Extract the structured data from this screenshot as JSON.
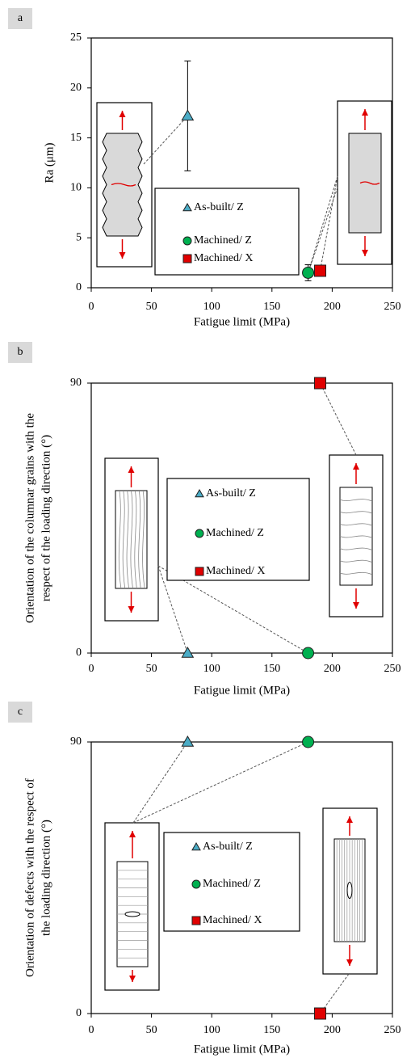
{
  "chart_data": [
    {
      "label": "a",
      "type": "scatter",
      "xlabel": "Fatigue limit (MPa)",
      "ylabel": "Ra (μm)",
      "xlim": [
        0,
        250
      ],
      "xticks": [
        0,
        50,
        100,
        150,
        200,
        250
      ],
      "ylim": [
        0,
        25
      ],
      "yticks": [
        0,
        5,
        10,
        15,
        20,
        25
      ],
      "series": [
        {
          "name": "As-built/ Z",
          "color": "#4bacc6",
          "marker": "triangle",
          "x": [
            80
          ],
          "values": [
            17.2
          ],
          "errors": [
            5.5
          ]
        },
        {
          "name": "Machined/ Z",
          "color": "#00b050",
          "marker": "circle",
          "x": [
            180
          ],
          "values": [
            1.5
          ],
          "errors": [
            0.8
          ]
        },
        {
          "name": "Machined/ X",
          "color": "#e00000",
          "marker": "square",
          "x": [
            190
          ],
          "values": [
            1.7
          ]
        }
      ]
    },
    {
      "label": "b",
      "type": "scatter",
      "xlabel": "Fatigue limit (MPa)",
      "ylabel": [
        "Orientation of the columnar grains with the",
        "respect of the loading direction (°)"
      ],
      "xlim": [
        0,
        250
      ],
      "xticks": [
        0,
        50,
        100,
        150,
        200,
        250
      ],
      "ylim": [
        0,
        90
      ],
      "yticks": [
        0,
        90
      ],
      "series": [
        {
          "name": "As-built/ Z",
          "color": "#4bacc6",
          "marker": "triangle",
          "x": [
            80
          ],
          "values": [
            0
          ]
        },
        {
          "name": "Machined/ Z",
          "color": "#00b050",
          "marker": "circle",
          "x": [
            180
          ],
          "values": [
            0
          ]
        },
        {
          "name": "Machined/ X",
          "color": "#e00000",
          "marker": "square",
          "x": [
            190
          ],
          "values": [
            90
          ]
        }
      ]
    },
    {
      "label": "c",
      "type": "scatter",
      "xlabel": "Fatigue limit (MPa)",
      "ylabel": [
        "Orientation of defects with the respect of",
        "the loading direction (°)"
      ],
      "xlim": [
        0,
        250
      ],
      "xticks": [
        0,
        50,
        100,
        150,
        200,
        250
      ],
      "ylim": [
        0,
        90
      ],
      "yticks": [
        0,
        90
      ],
      "series": [
        {
          "name": "As-built/ Z",
          "color": "#4bacc6",
          "marker": "triangle",
          "x": [
            80
          ],
          "values": [
            90
          ]
        },
        {
          "name": "Machined/ Z",
          "color": "#00b050",
          "marker": "circle",
          "x": [
            180
          ],
          "values": [
            90
          ]
        },
        {
          "name": "Machined/ X",
          "color": "#e00000",
          "marker": "square",
          "x": [
            190
          ],
          "values": [
            0
          ]
        }
      ]
    }
  ]
}
